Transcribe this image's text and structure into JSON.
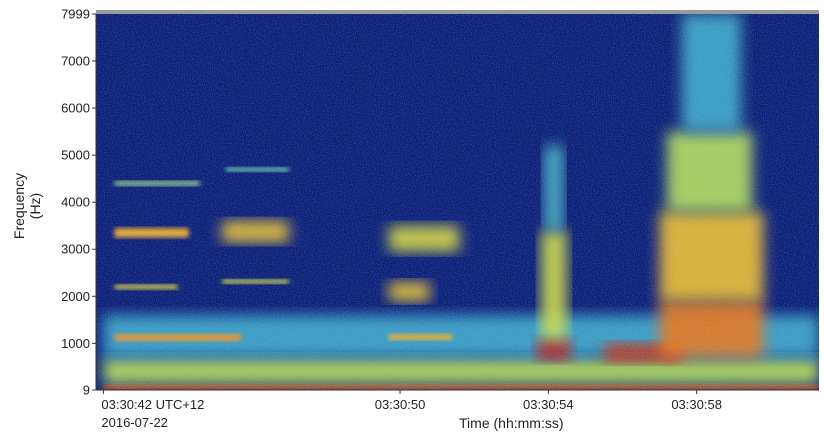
{
  "chart_data": {
    "type": "heatmap",
    "subtype": "spectrogram",
    "xlabel": "Time (hh:mm:ss)",
    "ylabel_lines": [
      "Frequency",
      "(Hz)"
    ],
    "x_start_label": "03:30:42 UTC+12",
    "x_start_date": "2016-07-22",
    "x_start_seconds": 42,
    "x_ticks": [
      {
        "label": "03:30:42 UTC+12",
        "t": 42
      },
      {
        "label": "03:30:50",
        "t": 50
      },
      {
        "label": "03:30:54",
        "t": 54
      },
      {
        "label": "03:30:58",
        "t": 58
      }
    ],
    "xlim_seconds": [
      41.8,
      61.3
    ],
    "y_ticks": [
      9,
      1000,
      2000,
      3000,
      4000,
      5000,
      6000,
      7000,
      7999
    ],
    "ylim": [
      9,
      7999
    ],
    "colormap": "jet",
    "colormap_stops": [
      "#0a1a6e",
      "#1a3fa8",
      "#2d8fd4",
      "#5fd0c0",
      "#c8e34a",
      "#f4c430",
      "#e8741c",
      "#b81414"
    ],
    "features": [
      {
        "t_start": 42.0,
        "t_end": 61.3,
        "f_low": 9,
        "f_high": 130,
        "level": 0.98
      },
      {
        "t_start": 42.0,
        "t_end": 61.3,
        "f_low": 130,
        "f_high": 700,
        "level": 0.55
      },
      {
        "t_start": 42.0,
        "t_end": 61.3,
        "f_low": 700,
        "f_high": 1600,
        "level": 0.35
      },
      {
        "t_start": 42.3,
        "t_end": 45.7,
        "f_low": 1050,
        "f_high": 1200,
        "level": 0.8
      },
      {
        "t_start": 42.3,
        "t_end": 44.3,
        "f_low": 3250,
        "f_high": 3450,
        "level": 0.75
      },
      {
        "t_start": 42.3,
        "t_end": 44.0,
        "f_low": 2150,
        "f_high": 2250,
        "level": 0.65
      },
      {
        "t_start": 42.3,
        "t_end": 44.6,
        "f_low": 4350,
        "f_high": 4450,
        "level": 0.5
      },
      {
        "t_start": 45.2,
        "t_end": 47.0,
        "f_low": 3150,
        "f_high": 3600,
        "level": 0.7
      },
      {
        "t_start": 45.2,
        "t_end": 47.0,
        "f_low": 2270,
        "f_high": 2360,
        "level": 0.6
      },
      {
        "t_start": 45.3,
        "t_end": 47.0,
        "f_low": 4650,
        "f_high": 4740,
        "level": 0.45
      },
      {
        "t_start": 49.7,
        "t_end": 51.4,
        "f_low": 1070,
        "f_high": 1200,
        "level": 0.75
      },
      {
        "t_start": 49.7,
        "t_end": 50.8,
        "f_low": 1900,
        "f_high": 2300,
        "level": 0.7
      },
      {
        "t_start": 49.7,
        "t_end": 51.6,
        "f_low": 2950,
        "f_high": 3500,
        "level": 0.62
      },
      {
        "t_start": 53.7,
        "t_end": 54.6,
        "f_low": 650,
        "f_high": 1100,
        "level": 0.98
      },
      {
        "t_start": 53.8,
        "t_end": 54.5,
        "f_low": 1100,
        "f_high": 3400,
        "level": 0.6
      },
      {
        "t_start": 53.9,
        "t_end": 54.4,
        "f_low": 3400,
        "f_high": 5200,
        "level": 0.38
      },
      {
        "t_start": 55.5,
        "t_end": 57.6,
        "f_low": 600,
        "f_high": 1000,
        "level": 0.95
      },
      {
        "t_start": 57.0,
        "t_end": 59.8,
        "f_low": 700,
        "f_high": 1900,
        "level": 0.85
      },
      {
        "t_start": 57.0,
        "t_end": 59.8,
        "f_low": 1900,
        "f_high": 3800,
        "level": 0.72
      },
      {
        "t_start": 57.2,
        "t_end": 59.5,
        "f_low": 3800,
        "f_high": 5500,
        "level": 0.55
      },
      {
        "t_start": 57.6,
        "t_end": 59.2,
        "f_low": 5500,
        "f_high": 7999,
        "level": 0.35
      }
    ],
    "grid": false,
    "legend": false
  }
}
